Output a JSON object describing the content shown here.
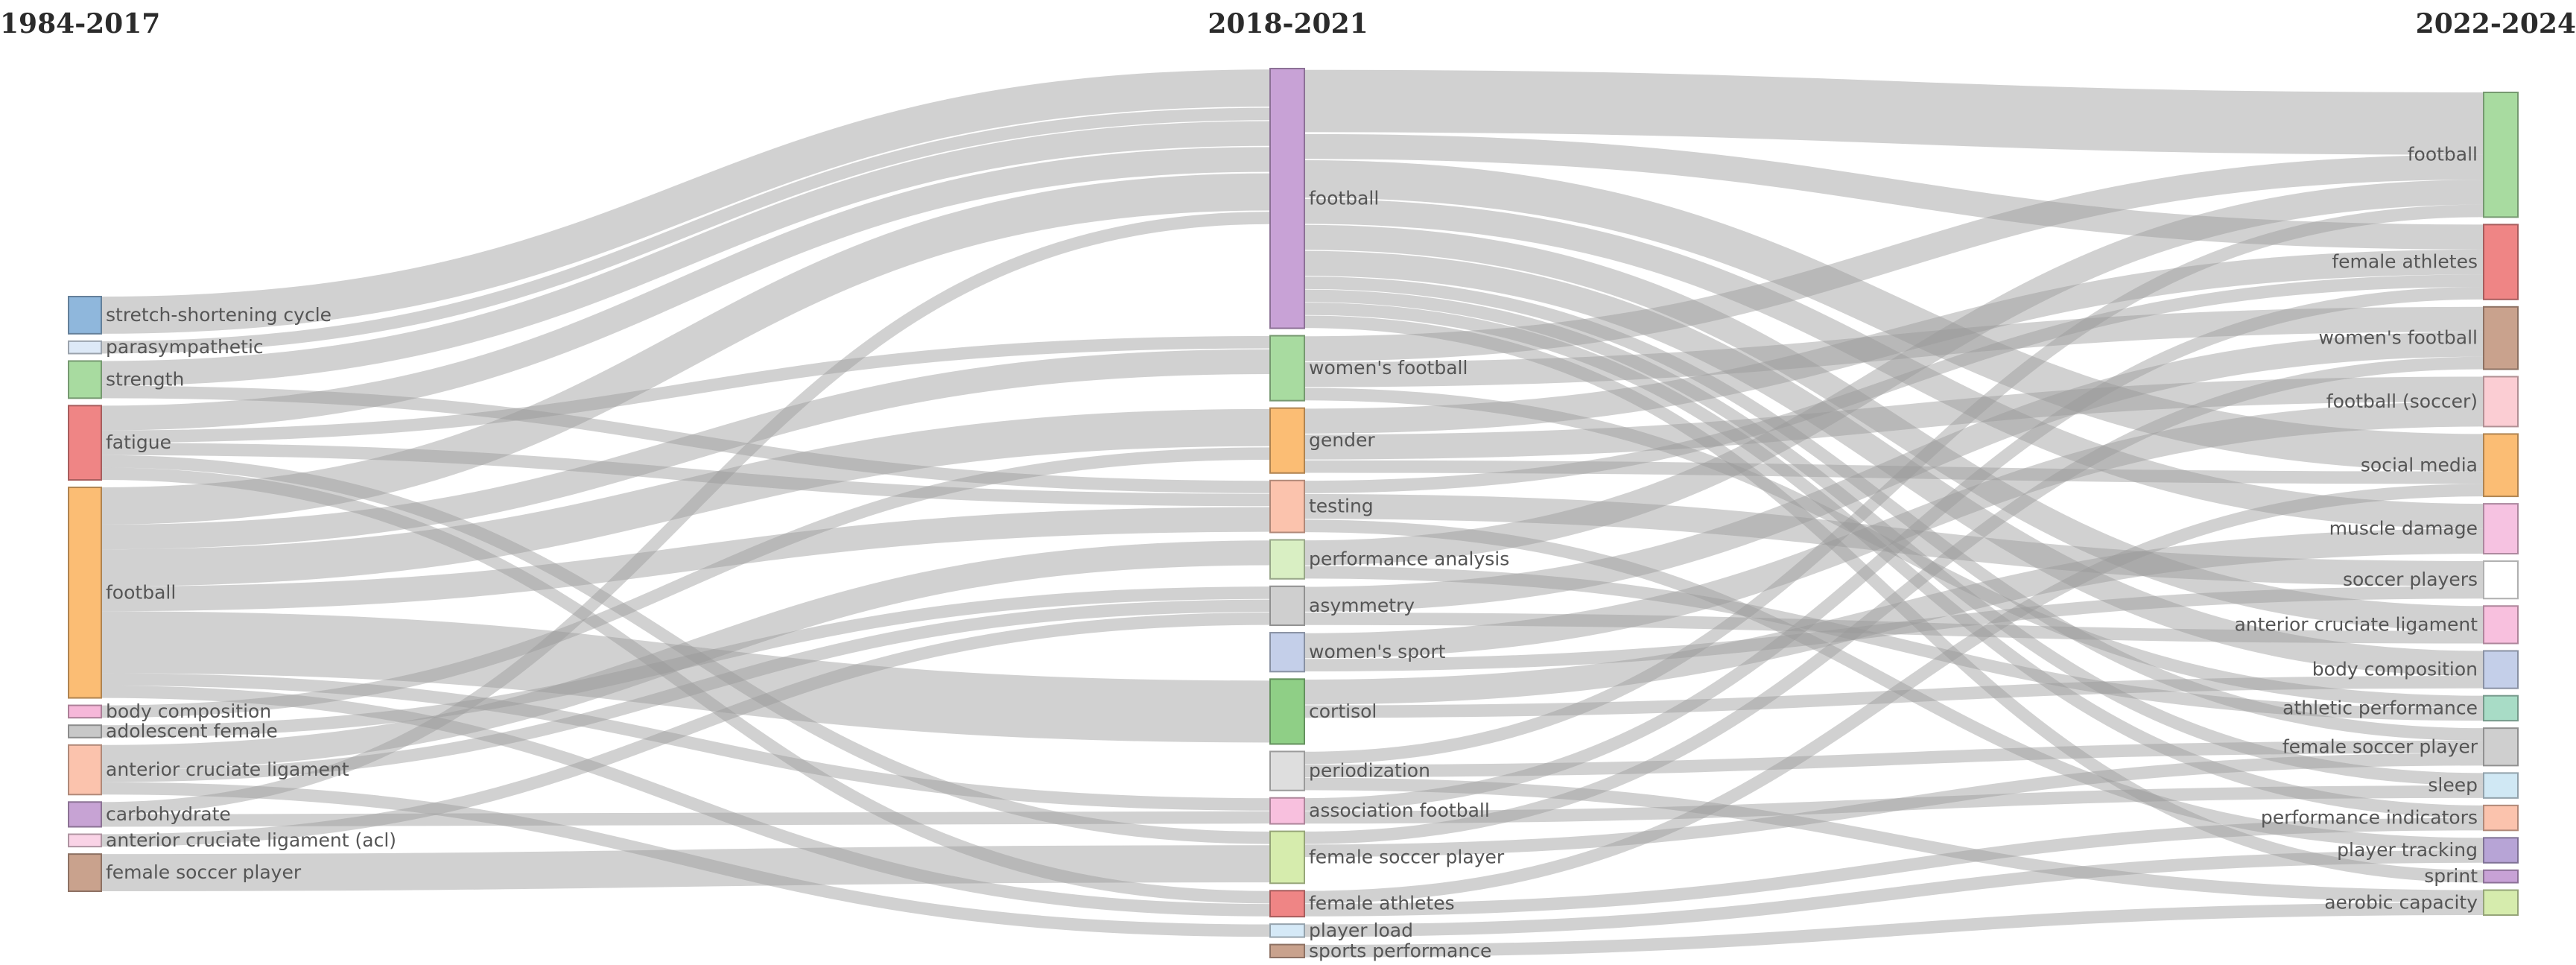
{
  "periods": [
    "1984-2017",
    "2018-2021",
    "2022-2024"
  ],
  "nodes": {
    "left": [
      {
        "id": "L1",
        "label": "stretch-shortening cycle",
        "color": "#8fb7dc"
      },
      {
        "id": "L2",
        "label": "parasympathetic",
        "color": "#dde9f7"
      },
      {
        "id": "L3",
        "label": "strength",
        "color": "#a8dba0"
      },
      {
        "id": "L4",
        "label": "fatigue",
        "color": "#ef8585"
      },
      {
        "id": "L5",
        "label": "football",
        "color": "#fbbd74"
      },
      {
        "id": "L6",
        "label": "body composition",
        "color": "#f6b7d9"
      },
      {
        "id": "L7",
        "label": "adolescent female",
        "color": "#c8c8c8"
      },
      {
        "id": "L8",
        "label": "anterior cruciate ligament",
        "color": "#fbc3ad"
      },
      {
        "id": "L9",
        "label": "carbohydrate",
        "color": "#c7a3d4"
      },
      {
        "id": "L10",
        "label": "anterior cruciate ligament (acl)",
        "color": "#f9d3e6"
      },
      {
        "id": "L11",
        "label": "female soccer player",
        "color": "#c9a28d"
      }
    ],
    "middle": [
      {
        "id": "M1",
        "label": "football",
        "color": "#c8a2d6"
      },
      {
        "id": "M2",
        "label": "women's football",
        "color": "#a8dba0"
      },
      {
        "id": "M3",
        "label": "gender",
        "color": "#fbbd74"
      },
      {
        "id": "M4",
        "label": "testing",
        "color": "#fbc3ad"
      },
      {
        "id": "M5",
        "label": "performance analysis",
        "color": "#d9efc3"
      },
      {
        "id": "M6",
        "label": "asymmetry",
        "color": "#cfcfcf"
      },
      {
        "id": "M7",
        "label": "women's sport",
        "color": "#c4cfe9"
      },
      {
        "id": "M8",
        "label": "cortisol",
        "color": "#8fcf86"
      },
      {
        "id": "M9",
        "label": "periodization",
        "color": "#dedede"
      },
      {
        "id": "M10",
        "label": "association football",
        "color": "#f8c0de"
      },
      {
        "id": "M11",
        "label": "female soccer player",
        "color": "#d6ecad"
      },
      {
        "id": "M12",
        "label": "female athletes",
        "color": "#ef8585"
      },
      {
        "id": "M13",
        "label": "player load",
        "color": "#d5e9f7"
      },
      {
        "id": "M14",
        "label": "sports performance",
        "color": "#c9a28d"
      }
    ],
    "right": [
      {
        "id": "R1",
        "label": "football",
        "color": "#a8dba0"
      },
      {
        "id": "R2",
        "label": "female athletes",
        "color": "#ef8585"
      },
      {
        "id": "R3",
        "label": "women's football",
        "color": "#c9a28d"
      },
      {
        "id": "R4",
        "label": "football (soccer)",
        "color": "#fbcdd3"
      },
      {
        "id": "R5",
        "label": "social media",
        "color": "#fbbd74"
      },
      {
        "id": "R6",
        "label": "muscle damage",
        "color": "#f6c2e1"
      },
      {
        "id": "R7",
        "label": "soccer players",
        "color": "#ffffff"
      },
      {
        "id": "R8",
        "label": "anterior cruciate ligament",
        "color": "#f8c0de"
      },
      {
        "id": "R9",
        "label": "body composition",
        "color": "#c4cfe9"
      },
      {
        "id": "R10",
        "label": "athletic performance",
        "color": "#a8dcc6"
      },
      {
        "id": "R11",
        "label": "female soccer player",
        "color": "#cfcfcf"
      },
      {
        "id": "R12",
        "label": "sleep",
        "color": "#d0e8f4"
      },
      {
        "id": "R13",
        "label": "performance indicators",
        "color": "#fbc3ad"
      },
      {
        "id": "R14",
        "label": "player tracking",
        "color": "#b7a4d6"
      },
      {
        "id": "R15",
        "label": "sprint",
        "color": "#c8a2d6"
      },
      {
        "id": "R16",
        "label": "aerobic capacity",
        "color": "#d6ecad"
      }
    ]
  },
  "links": [
    {
      "source": "L1",
      "target": "M1",
      "value": 3
    },
    {
      "source": "L2",
      "target": "M1",
      "value": 1
    },
    {
      "source": "L3",
      "target": "M1",
      "value": 2
    },
    {
      "source": "L3",
      "target": "M4",
      "value": 1
    },
    {
      "source": "L4",
      "target": "M1",
      "value": 2
    },
    {
      "source": "L4",
      "target": "M2",
      "value": 1
    },
    {
      "source": "L4",
      "target": "M4",
      "value": 1
    },
    {
      "source": "L4",
      "target": "M11",
      "value": 1
    },
    {
      "source": "L4",
      "target": "M12",
      "value": 1
    },
    {
      "source": "L5",
      "target": "M1",
      "value": 3
    },
    {
      "source": "L5",
      "target": "M2",
      "value": 2
    },
    {
      "source": "L5",
      "target": "M3",
      "value": 3
    },
    {
      "source": "L5",
      "target": "M4",
      "value": 2
    },
    {
      "source": "L5",
      "target": "M8",
      "value": 5
    },
    {
      "source": "L5",
      "target": "M10",
      "value": 1
    },
    {
      "source": "L5",
      "target": "M12",
      "value": 1
    },
    {
      "source": "L6",
      "target": "M3",
      "value": 1
    },
    {
      "source": "L7",
      "target": "M6",
      "value": 1
    },
    {
      "source": "L8",
      "target": "M5",
      "value": 2
    },
    {
      "source": "L8",
      "target": "M6",
      "value": 1
    },
    {
      "source": "L8",
      "target": "M13",
      "value": 1
    },
    {
      "source": "L9",
      "target": "M1",
      "value": 1
    },
    {
      "source": "L9",
      "target": "M10",
      "value": 1
    },
    {
      "source": "L10",
      "target": "M6",
      "value": 1
    },
    {
      "source": "L11",
      "target": "M11",
      "value": 3
    },
    {
      "source": "M1",
      "target": "R1",
      "value": 5
    },
    {
      "source": "M1",
      "target": "R2",
      "value": 2
    },
    {
      "source": "M1",
      "target": "R5",
      "value": 3
    },
    {
      "source": "M1",
      "target": "R6",
      "value": 2
    },
    {
      "source": "M1",
      "target": "R8",
      "value": 2
    },
    {
      "source": "M1",
      "target": "R9",
      "value": 2
    },
    {
      "source": "M1",
      "target": "R11",
      "value": 1
    },
    {
      "source": "M1",
      "target": "R12",
      "value": 1
    },
    {
      "source": "M1",
      "target": "R13",
      "value": 1
    },
    {
      "source": "M1",
      "target": "R15",
      "value": 1
    },
    {
      "source": "M2",
      "target": "R1",
      "value": 2
    },
    {
      "source": "M2",
      "target": "R3",
      "value": 2
    },
    {
      "source": "M2",
      "target": "R10",
      "value": 1
    },
    {
      "source": "M3",
      "target": "R2",
      "value": 2
    },
    {
      "source": "M3",
      "target": "R4",
      "value": 2
    },
    {
      "source": "M3",
      "target": "R5",
      "value": 1
    },
    {
      "source": "M4",
      "target": "R2",
      "value": 1
    },
    {
      "source": "M4",
      "target": "R7",
      "value": 2
    },
    {
      "source": "M4",
      "target": "R14",
      "value": 1
    },
    {
      "source": "M5",
      "target": "R1",
      "value": 2
    },
    {
      "source": "M5",
      "target": "R10",
      "value": 1
    },
    {
      "source": "M6",
      "target": "R3",
      "value": 2
    },
    {
      "source": "M6",
      "target": "R8",
      "value": 1
    },
    {
      "source": "M7",
      "target": "R4",
      "value": 2
    },
    {
      "source": "M7",
      "target": "R7",
      "value": 1
    },
    {
      "source": "M8",
      "target": "R6",
      "value": 2
    },
    {
      "source": "M8",
      "target": "R9",
      "value": 1
    },
    {
      "source": "M9",
      "target": "R1",
      "value": 1
    },
    {
      "source": "M9",
      "target": "R11",
      "value": 1
    },
    {
      "source": "M9",
      "target": "R16",
      "value": 1
    },
    {
      "source": "M10",
      "target": "R2",
      "value": 1
    },
    {
      "source": "M10",
      "target": "R12",
      "value": 1
    },
    {
      "source": "M11",
      "target": "R3",
      "value": 1
    },
    {
      "source": "M11",
      "target": "R11",
      "value": 1
    },
    {
      "source": "M12",
      "target": "R5",
      "value": 1
    },
    {
      "source": "M12",
      "target": "R13",
      "value": 1
    },
    {
      "source": "M13",
      "target": "R14",
      "value": 1
    },
    {
      "source": "M14",
      "target": "R16",
      "value": 1
    }
  ]
}
